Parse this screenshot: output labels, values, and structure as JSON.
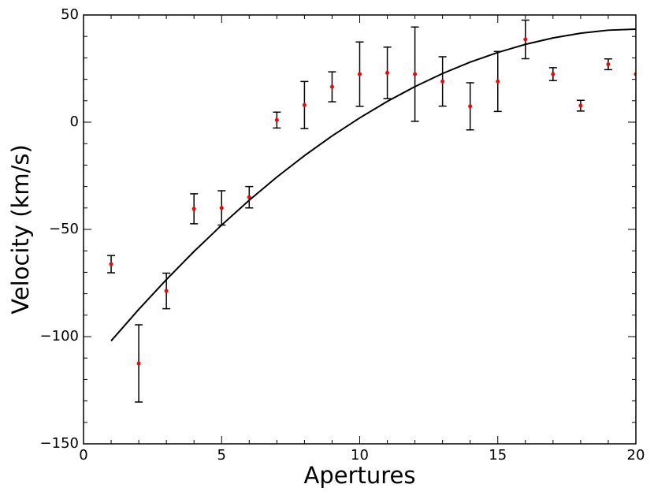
{
  "chart_data": {
    "type": "scatter",
    "xlabel": "Apertures",
    "ylabel": "Velocity (km/s)",
    "xlim": [
      0,
      20
    ],
    "ylim": [
      -150,
      50
    ],
    "xticks": [
      0,
      5,
      10,
      15,
      20
    ],
    "yticks": [
      {
        "value": -150,
        "label": "−150"
      },
      {
        "value": -100,
        "label": "−100"
      },
      {
        "value": -50,
        "label": "−50"
      },
      0,
      50
    ],
    "xminorticks": [
      1,
      2,
      3,
      4,
      6,
      7,
      8,
      9,
      11,
      12,
      13,
      14,
      16,
      17,
      18,
      19
    ],
    "yminorticks": [
      -140,
      -130,
      -120,
      -110,
      -90,
      -80,
      -70,
      -60,
      -40,
      -30,
      -20,
      -10,
      10,
      20,
      30,
      40
    ],
    "series": [
      {
        "type": "errorbar",
        "color": "#ff0000",
        "error_color": "#000000",
        "x": [
          1,
          2,
          3,
          4,
          5,
          6,
          7,
          8,
          9,
          10,
          11,
          12,
          13,
          14,
          15,
          16,
          17,
          18,
          19,
          20
        ],
        "values": [
          -66.2,
          -112.5,
          -78.7,
          -40.4,
          -40,
          -35,
          1,
          8,
          16.5,
          22.4,
          23,
          22.4,
          19,
          7.4,
          19,
          38.6,
          22.4,
          7.7,
          27,
          22.4
        ],
        "errors": [
          4,
          18,
          8.3,
          7,
          8,
          5,
          3.7,
          11,
          7,
          15,
          12,
          22,
          11.5,
          11,
          14,
          9,
          3,
          2.5,
          2.5,
          null
        ]
      },
      {
        "type": "line",
        "color": "#000000",
        "x": [
          1,
          2,
          3,
          4,
          5,
          6,
          7,
          8,
          9,
          10,
          11,
          12,
          13,
          14,
          15,
          16,
          17,
          18,
          19,
          20
        ],
        "values": [
          -102,
          -87.3,
          -73.4,
          -60.3,
          -48,
          -36.4,
          -25.6,
          -15.6,
          -6.4,
          2,
          9.7,
          16.6,
          22.7,
          28,
          32.5,
          36.3,
          39.3,
          41.5,
          42.9,
          43.4
        ]
      }
    ]
  }
}
